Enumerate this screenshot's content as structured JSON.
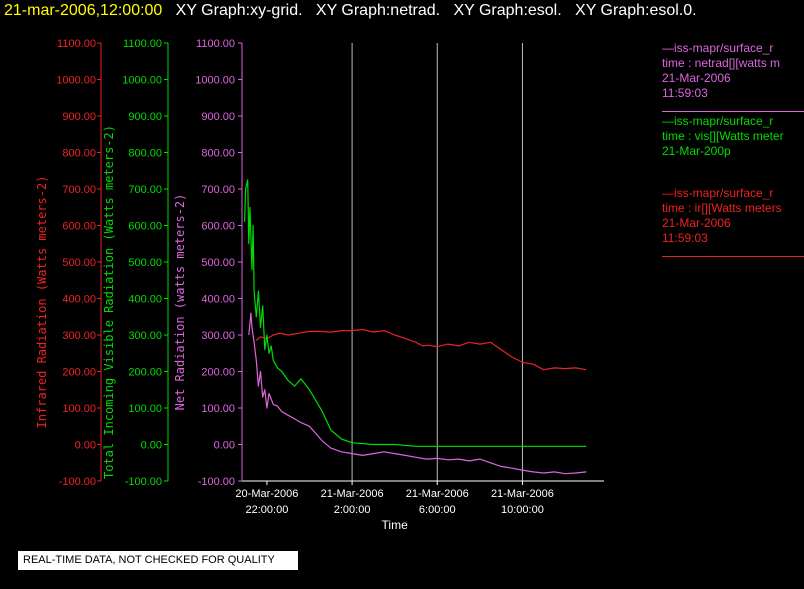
{
  "header": {
    "timestamp": "21-mar-2006,12:00:00",
    "titles": [
      "XY Graph:xy-grid.",
      "XY Graph:netrad.",
      "XY Graph:esol.",
      "XY Graph:esol.0."
    ]
  },
  "legend": [
    {
      "color": "#dd66dd",
      "line1": "—iss-mapr/surface_r",
      "line2": "time : netrad[][watts m",
      "line3": "21-Mar-2006",
      "line4": "11:59:03"
    },
    {
      "color": "#00dd00",
      "line1": "—iss-mapr/surface_r",
      "line2": "time : vis[][Watts meter",
      "line3": "21-Mar-200p",
      "line4": ""
    },
    {
      "color": "#ee2222",
      "line1": "—iss-mapr/surface_r",
      "line2": "time : ir[][Watts meters",
      "line3": "21-Mar-2006",
      "line4": "11:59:03"
    }
  ],
  "notice": "REAL-TIME DATA, NOT CHECKED FOR QUALITY",
  "chart_data": {
    "type": "line",
    "xlabel": "Time",
    "x_ticks": [
      {
        "hour": 0,
        "line1": "20-Mar-2006",
        "line2": "22:00:00"
      },
      {
        "hour": 4,
        "line1": "21-Mar-2006",
        "line2": "2:00:00"
      },
      {
        "hour": 8,
        "line1": "21-Mar-2006",
        "line2": "6:00:00"
      },
      {
        "hour": 12,
        "line1": "21-Mar-2006",
        "line2": "10:00:00"
      }
    ],
    "xlim_hours": [
      -1.17,
      15.83
    ],
    "ylim": [
      -100,
      1100
    ],
    "y_ticks": [
      -100,
      0,
      100,
      200,
      300,
      400,
      500,
      600,
      700,
      800,
      900,
      1000,
      1100
    ],
    "y_tick_labels": [
      "-100.00",
      "0.00",
      "100.00",
      "200.00",
      "300.00",
      "400.00",
      "500.00",
      "600.00",
      "700.00",
      "800.00",
      "900.00",
      "1000.00",
      "1100.00"
    ],
    "axes": [
      {
        "name": "infrared",
        "label": "Infrared Radiation (Watts meters-2)",
        "color": "#ee2222"
      },
      {
        "name": "visible",
        "label": "Total Incoming Visible Radiation (Watts meters-2)",
        "color": "#00dd00"
      },
      {
        "name": "net",
        "label": "Net Radiation (watts meters-2)",
        "color": "#dd66dd"
      }
    ],
    "series": [
      {
        "name": "ir",
        "color": "#ee2222",
        "x": [
          -0.5,
          -0.3,
          0,
          0.3,
          0.6,
          1,
          1.5,
          2,
          2.5,
          3,
          3.5,
          4,
          4.5,
          5,
          5.5,
          6,
          6.5,
          7,
          7.3,
          7.6,
          8,
          8.5,
          9,
          9.5,
          10,
          10.5,
          11,
          11.5,
          12,
          12.5,
          13,
          13.5,
          14,
          14.5,
          15
        ],
        "y": [
          285,
          295,
          290,
          300,
          305,
          300,
          305,
          310,
          310,
          308,
          312,
          312,
          315,
          308,
          312,
          300,
          290,
          280,
          270,
          272,
          268,
          275,
          270,
          280,
          275,
          280,
          260,
          240,
          225,
          220,
          205,
          210,
          208,
          210,
          205
        ]
      },
      {
        "name": "vis",
        "color": "#00dd00",
        "x": [
          -1.05,
          -1.0,
          -0.9,
          -0.85,
          -0.8,
          -0.7,
          -0.65,
          -0.6,
          -0.5,
          -0.4,
          -0.3,
          -0.2,
          -0.1,
          0,
          0.1,
          0.2,
          0.3,
          0.5,
          0.7,
          1,
          1.3,
          1.6,
          2,
          2.3,
          2.6,
          3,
          3.5,
          4,
          5,
          6,
          7,
          8,
          9,
          10,
          11,
          12,
          13,
          14,
          15
        ],
        "y": [
          610,
          700,
          725,
          550,
          650,
          480,
          600,
          420,
          350,
          420,
          320,
          380,
          260,
          300,
          250,
          270,
          230,
          210,
          200,
          175,
          160,
          180,
          150,
          120,
          90,
          40,
          15,
          5,
          0,
          0,
          -5,
          -5,
          -5,
          -5,
          -5,
          -5,
          -5,
          -5,
          -5
        ]
      },
      {
        "name": "netrad",
        "color": "#dd66dd",
        "x": [
          -0.85,
          -0.75,
          -0.7,
          -0.6,
          -0.5,
          -0.4,
          -0.3,
          -0.2,
          -0.1,
          0,
          0.1,
          0.3,
          0.5,
          0.7,
          1,
          1.3,
          1.6,
          2,
          2.3,
          2.6,
          3,
          3.5,
          4,
          4.5,
          5,
          5.5,
          6,
          6.5,
          7,
          7.5,
          8,
          8.5,
          9,
          9.5,
          10,
          10.5,
          11,
          11.5,
          12,
          12.5,
          13,
          13.5,
          14,
          14.5,
          15
        ],
        "y": [
          300,
          360,
          320,
          280,
          230,
          160,
          200,
          130,
          150,
          100,
          140,
          110,
          105,
          90,
          80,
          70,
          60,
          50,
          30,
          10,
          -10,
          -20,
          -25,
          -30,
          -25,
          -20,
          -25,
          -30,
          -35,
          -40,
          -38,
          -42,
          -40,
          -45,
          -40,
          -50,
          -60,
          -65,
          -70,
          -75,
          -78,
          -75,
          -80,
          -78,
          -75
        ]
      }
    ]
  }
}
